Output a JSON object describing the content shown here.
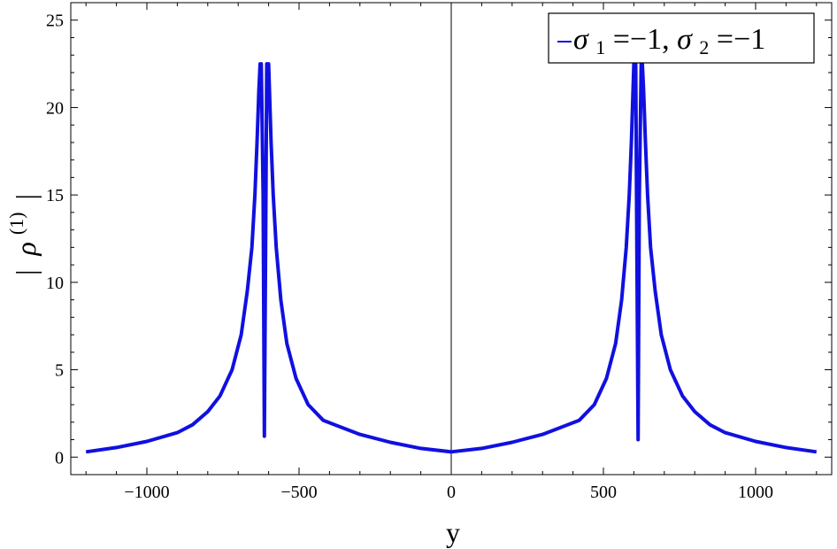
{
  "chart_data": {
    "type": "line",
    "title": "",
    "xlabel": "y",
    "ylabel": "| ρ(1) |",
    "ylabel_parts": {
      "bar_left": "|",
      "rho": "ρ",
      "superscript": "(1)",
      "bar_right": "|"
    },
    "xlim": [
      -1250,
      1250
    ],
    "ylim": [
      -1,
      26
    ],
    "x_ticks": [
      -1000,
      -500,
      0,
      500,
      1000
    ],
    "x_tick_labels": [
      "−1000",
      "−500",
      "0",
      "500",
      "1000"
    ],
    "y_ticks": [
      0,
      5,
      10,
      15,
      20,
      25
    ],
    "y_tick_labels": [
      "0",
      "5",
      "10",
      "15",
      "20",
      "25"
    ],
    "grid": false,
    "legend_position": "top-right",
    "legend": {
      "sigma1_symbol": "σ",
      "sigma1_sub": "1",
      "sigma1_value": "=−1, ",
      "sigma2_symbol": "σ",
      "sigma2_sub": "2",
      "sigma2_value": "=−1"
    },
    "series": [
      {
        "color": "#1010e0",
        "points": [
          [
            -1200,
            0.3
          ],
          [
            -1100,
            0.55
          ],
          [
            -1000,
            0.9
          ],
          [
            -900,
            1.4
          ],
          [
            -850,
            1.85
          ],
          [
            -800,
            2.6
          ],
          [
            -760,
            3.5
          ],
          [
            -720,
            5.0
          ],
          [
            -690,
            7.0
          ],
          [
            -670,
            9.5
          ],
          [
            -655,
            12.0
          ],
          [
            -645,
            15.0
          ],
          [
            -638,
            18.0
          ],
          [
            -632,
            21.0
          ],
          [
            -628,
            22.5
          ],
          [
            -624,
            22.5
          ],
          [
            -618,
            15.0
          ],
          [
            -614,
            1.2
          ],
          [
            -610,
            12.0
          ],
          [
            -606,
            22.5
          ],
          [
            -600,
            22.5
          ],
          [
            -592,
            18.0
          ],
          [
            -585,
            15.0
          ],
          [
            -575,
            12.0
          ],
          [
            -560,
            9.0
          ],
          [
            -540,
            6.5
          ],
          [
            -510,
            4.5
          ],
          [
            -470,
            3.0
          ],
          [
            -420,
            2.1
          ],
          [
            -300,
            1.3
          ],
          [
            -200,
            0.85
          ],
          [
            -100,
            0.5
          ],
          [
            0,
            0.3
          ],
          [
            100,
            0.5
          ],
          [
            200,
            0.85
          ],
          [
            300,
            1.3
          ],
          [
            420,
            2.1
          ],
          [
            470,
            3.0
          ],
          [
            510,
            4.5
          ],
          [
            540,
            6.5
          ],
          [
            560,
            9.0
          ],
          [
            575,
            12.0
          ],
          [
            585,
            15.0
          ],
          [
            592,
            18.0
          ],
          [
            600,
            22.5
          ],
          [
            606,
            22.5
          ],
          [
            610,
            12.0
          ],
          [
            614,
            1.0
          ],
          [
            618,
            15.0
          ],
          [
            624,
            22.5
          ],
          [
            628,
            22.5
          ],
          [
            632,
            21.0
          ],
          [
            638,
            18.0
          ],
          [
            645,
            15.0
          ],
          [
            655,
            12.0
          ],
          [
            670,
            9.5
          ],
          [
            690,
            7.0
          ],
          [
            720,
            5.0
          ],
          [
            760,
            3.5
          ],
          [
            800,
            2.6
          ],
          [
            850,
            1.85
          ],
          [
            900,
            1.4
          ],
          [
            1000,
            0.9
          ],
          [
            1100,
            0.55
          ],
          [
            1200,
            0.3
          ]
        ]
      }
    ]
  }
}
